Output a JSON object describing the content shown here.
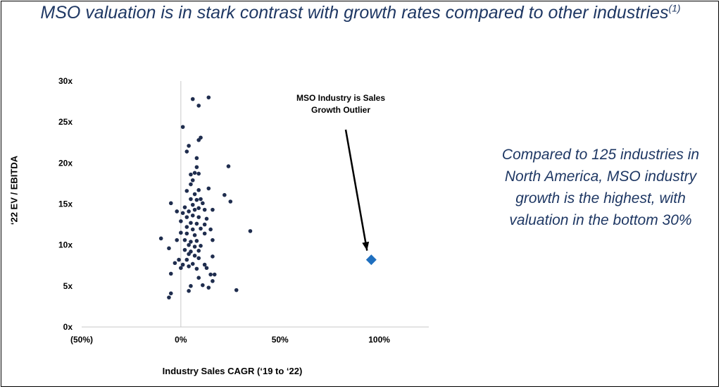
{
  "title": {
    "text": "MSO valuation is in stark contrast with growth rates compared to other industries",
    "footnote": "(1)"
  },
  "side_text": "Compared to 125 industries in North America, MSO industry growth is the highest, with valuation in the bottom 30%",
  "colors": {
    "title": "#1f3864",
    "points": "#1f2d4e",
    "outlier": "#1f6fbf",
    "axis": "#c8c8c8"
  },
  "chart_data": {
    "type": "scatter",
    "xlabel": "Industry Sales CAGR (‘19 to ‘22)",
    "ylabel": "‘22 EV / EBITDA",
    "xlim": [
      -50,
      125
    ],
    "ylim": [
      0,
      30
    ],
    "x_ticks": [
      -50,
      0,
      50,
      100
    ],
    "x_tick_labels": [
      "(50%)",
      "0%",
      "50%",
      "100%"
    ],
    "y_ticks": [
      0,
      5,
      10,
      15,
      20,
      25,
      30
    ],
    "y_tick_labels": [
      "0x",
      "5x",
      "10x",
      "15x",
      "20x",
      "25x",
      "30x"
    ],
    "grid": false,
    "annotation": {
      "lines": [
        "MSO Industry is Sales",
        "Growth Outlier"
      ],
      "points_to": [
        96,
        8.2
      ]
    },
    "series": [
      {
        "marker": "circle",
        "points": [
          [
            6,
            27.8
          ],
          [
            14,
            28
          ],
          [
            9,
            27
          ],
          [
            1,
            24.4
          ],
          [
            10,
            23.1
          ],
          [
            9,
            22.8
          ],
          [
            4,
            22.1
          ],
          [
            3,
            21.4
          ],
          [
            8,
            20.6
          ],
          [
            24,
            19.6
          ],
          [
            8,
            19.5
          ],
          [
            5,
            18.6
          ],
          [
            7,
            18.8
          ],
          [
            9,
            18.7
          ],
          [
            6,
            17.9
          ],
          [
            5,
            17.4
          ],
          [
            14,
            16.9
          ],
          [
            3,
            16.6
          ],
          [
            9,
            16.7
          ],
          [
            7,
            16.2
          ],
          [
            22,
            16.1
          ],
          [
            5,
            15.6
          ],
          [
            10,
            15.6
          ],
          [
            8,
            15.5
          ],
          [
            11,
            15.1
          ],
          [
            25,
            15.3
          ],
          [
            -5,
            15.1
          ],
          [
            2,
            14.6
          ],
          [
            6,
            14.9
          ],
          [
            9,
            14.5
          ],
          [
            12,
            14.3
          ],
          [
            16,
            14.3
          ],
          [
            -2,
            14.1
          ],
          [
            1,
            13.9
          ],
          [
            4,
            14.1
          ],
          [
            7,
            14.3
          ],
          [
            3,
            13.4
          ],
          [
            6,
            13.6
          ],
          [
            9,
            13.4
          ],
          [
            13,
            13.2
          ],
          [
            0,
            12.9
          ],
          [
            5,
            12.7
          ],
          [
            8,
            12.6
          ],
          [
            12,
            12.5
          ],
          [
            3,
            12.2
          ],
          [
            6,
            11.9
          ],
          [
            10,
            12
          ],
          [
            15,
            11.9
          ],
          [
            35,
            11.7
          ],
          [
            0,
            11.5
          ],
          [
            3,
            11.4
          ],
          [
            7,
            11.2
          ],
          [
            12,
            11.4
          ],
          [
            -10,
            10.8
          ],
          [
            -2,
            10.6
          ],
          [
            2,
            10.6
          ],
          [
            5,
            10.4
          ],
          [
            8,
            10.5
          ],
          [
            16,
            10.6
          ],
          [
            4,
            10
          ],
          [
            7,
            9.8
          ],
          [
            10,
            9.9
          ],
          [
            -6,
            9.6
          ],
          [
            2,
            9.4
          ],
          [
            5,
            9.2
          ],
          [
            9,
            9.3
          ],
          [
            4,
            8.9
          ],
          [
            7,
            8.7
          ],
          [
            16,
            8.6
          ],
          [
            -1,
            8.2
          ],
          [
            3,
            8.2
          ],
          [
            9,
            8.4
          ],
          [
            -3,
            7.8
          ],
          [
            1,
            7.6
          ],
          [
            6,
            7.7
          ],
          [
            12,
            7.6
          ],
          [
            0,
            7.2
          ],
          [
            4,
            7.4
          ],
          [
            8,
            7.1
          ],
          [
            13,
            7.2
          ],
          [
            -5,
            6.5
          ],
          [
            15,
            6.4
          ],
          [
            17,
            6.4
          ],
          [
            9,
            6
          ],
          [
            16,
            5.6
          ],
          [
            11,
            5.1
          ],
          [
            5,
            5
          ],
          [
            14,
            4.8
          ],
          [
            28,
            4.5
          ],
          [
            4,
            4.4
          ],
          [
            -5,
            4.1
          ],
          [
            -6,
            3.6
          ]
        ]
      },
      {
        "name": "MSO Industry",
        "marker": "diamond",
        "points": [
          [
            96,
            8.2
          ]
        ]
      }
    ]
  }
}
